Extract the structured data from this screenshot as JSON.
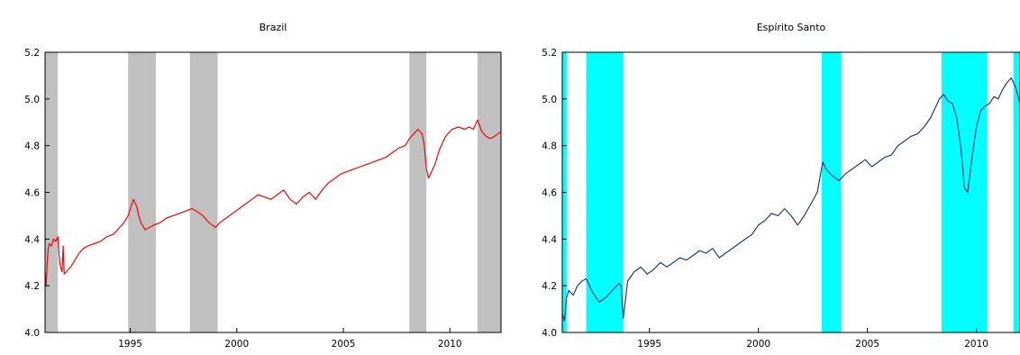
{
  "chart_data": [
    {
      "type": "line",
      "title": "Brazil",
      "xlabel": "",
      "ylabel": "",
      "xlim": [
        1991.0,
        2012.4
      ],
      "ylim": [
        4.0,
        5.2
      ],
      "x_ticks": [
        1995,
        2000,
        2005,
        2010
      ],
      "x_tick_labels": [
        "1995",
        "2000",
        "2005",
        "2010"
      ],
      "y_ticks": [
        4.0,
        4.2,
        4.4,
        4.6,
        4.8,
        5.0,
        5.2
      ],
      "y_tick_labels": [
        "4.0",
        "4.2",
        "4.4",
        "4.6",
        "4.8",
        "5.0",
        "5.2"
      ],
      "grid": false,
      "line_color": "#ff0000",
      "shade_color": "#c0c0c0",
      "shaded_periods": [
        [
          1991.0,
          1991.6
        ],
        [
          1994.9,
          1996.2
        ],
        [
          1997.8,
          1999.1
        ],
        [
          2008.1,
          2008.9
        ],
        [
          2011.3,
          2012.4
        ]
      ],
      "series": [
        {
          "x": [
            1991.0,
            1991.05,
            1991.1,
            1991.15,
            1991.2,
            1991.3,
            1991.4,
            1991.5,
            1991.6,
            1991.65,
            1991.7,
            1991.8,
            1991.85,
            1991.9,
            1992.0,
            1992.2,
            1992.4,
            1992.6,
            1992.8,
            1993.0,
            1993.3,
            1993.6,
            1993.9,
            1994.2,
            1994.5,
            1994.7,
            1994.9,
            1995.0,
            1995.15,
            1995.3,
            1995.4,
            1995.5,
            1995.7,
            1995.9,
            1996.1,
            1996.4,
            1996.7,
            1997.0,
            1997.3,
            1997.6,
            1997.9,
            1998.1,
            1998.4,
            1998.7,
            1999.0,
            1999.2,
            1999.5,
            1999.8,
            2000.1,
            2000.4,
            2000.7,
            2001.0,
            2001.3,
            2001.6,
            2001.9,
            2002.2,
            2002.5,
            2002.8,
            2003.1,
            2003.4,
            2003.7,
            2004.0,
            2004.3,
            2004.6,
            2004.9,
            2005.2,
            2005.5,
            2005.8,
            2006.1,
            2006.4,
            2006.7,
            2007.0,
            2007.3,
            2007.6,
            2007.9,
            2008.1,
            2008.3,
            2008.5,
            2008.7,
            2008.8,
            2008.9,
            2009.0,
            2009.1,
            2009.3,
            2009.5,
            2009.8,
            2010.1,
            2010.4,
            2010.7,
            2010.9,
            2011.1,
            2011.3,
            2011.5,
            2011.7,
            2011.9,
            2012.1,
            2012.4
          ],
          "y": [
            4.26,
            4.2,
            4.3,
            4.36,
            4.38,
            4.37,
            4.4,
            4.39,
            4.41,
            4.34,
            4.29,
            4.26,
            4.37,
            4.25,
            4.26,
            4.28,
            4.31,
            4.34,
            4.36,
            4.37,
            4.38,
            4.39,
            4.41,
            4.42,
            4.45,
            4.47,
            4.5,
            4.53,
            4.57,
            4.54,
            4.5,
            4.47,
            4.44,
            4.45,
            4.46,
            4.47,
            4.49,
            4.5,
            4.51,
            4.52,
            4.53,
            4.52,
            4.5,
            4.47,
            4.45,
            4.47,
            4.49,
            4.51,
            4.53,
            4.55,
            4.57,
            4.59,
            4.58,
            4.57,
            4.59,
            4.61,
            4.57,
            4.55,
            4.58,
            4.6,
            4.57,
            4.61,
            4.64,
            4.66,
            4.68,
            4.69,
            4.7,
            4.71,
            4.72,
            4.73,
            4.74,
            4.75,
            4.77,
            4.79,
            4.8,
            4.83,
            4.85,
            4.87,
            4.85,
            4.8,
            4.7,
            4.66,
            4.68,
            4.72,
            4.78,
            4.84,
            4.87,
            4.88,
            4.87,
            4.88,
            4.87,
            4.91,
            4.86,
            4.84,
            4.83,
            4.84,
            4.86
          ]
        }
      ]
    },
    {
      "type": "line",
      "title": "Espírito Santo",
      "xlabel": "",
      "ylabel": "",
      "xlim": [
        1991.0,
        2012.0
      ],
      "ylim": [
        4.0,
        5.2
      ],
      "x_ticks": [
        1995,
        2000,
        2005,
        2010
      ],
      "x_tick_labels": [
        "1995",
        "2000",
        "2005",
        "2010"
      ],
      "y_ticks": [
        4.0,
        4.2,
        4.4,
        4.6,
        4.8,
        5.0,
        5.2
      ],
      "y_tick_labels": [
        "4.0",
        "4.2",
        "4.4",
        "4.6",
        "4.8",
        "5.0",
        "5.2"
      ],
      "grid": false,
      "line_color": "#1f3c7a",
      "shade_color": "#00ffff",
      "shaded_periods": [
        [
          1991.0,
          1991.2
        ],
        [
          1992.1,
          1993.8
        ],
        [
          2002.9,
          2003.8
        ],
        [
          2008.4,
          2010.5
        ],
        [
          2011.7,
          2012.0
        ]
      ],
      "series": [
        {
          "x": [
            1991.0,
            1991.1,
            1991.2,
            1991.3,
            1991.5,
            1991.7,
            1991.9,
            1992.1,
            1992.4,
            1992.7,
            1993.0,
            1993.3,
            1993.6,
            1993.7,
            1993.8,
            1994.0,
            1994.3,
            1994.6,
            1994.9,
            1995.2,
            1995.5,
            1995.8,
            1996.1,
            1996.4,
            1996.7,
            1997.0,
            1997.3,
            1997.6,
            1997.9,
            1998.2,
            1998.5,
            1998.8,
            1999.1,
            1999.4,
            1999.7,
            2000.0,
            2000.3,
            2000.6,
            2000.9,
            2001.2,
            2001.5,
            2001.8,
            2002.1,
            2002.4,
            2002.7,
            2002.95,
            2003.1,
            2003.4,
            2003.7,
            2004.0,
            2004.3,
            2004.6,
            2004.9,
            2005.2,
            2005.5,
            2005.8,
            2006.1,
            2006.4,
            2006.7,
            2007.0,
            2007.3,
            2007.6,
            2007.9,
            2008.1,
            2008.3,
            2008.5,
            2008.7,
            2008.9,
            2009.1,
            2009.3,
            2009.45,
            2009.6,
            2009.8,
            2010.0,
            2010.2,
            2010.4,
            2010.6,
            2010.8,
            2011.0,
            2011.2,
            2011.4,
            2011.6,
            2011.8,
            2012.0
          ],
          "y": [
            4.08,
            4.05,
            4.15,
            4.18,
            4.16,
            4.2,
            4.22,
            4.23,
            4.17,
            4.13,
            4.15,
            4.18,
            4.21,
            4.2,
            4.06,
            4.22,
            4.26,
            4.28,
            4.25,
            4.27,
            4.3,
            4.28,
            4.3,
            4.32,
            4.31,
            4.33,
            4.35,
            4.34,
            4.36,
            4.32,
            4.34,
            4.36,
            4.38,
            4.4,
            4.42,
            4.46,
            4.48,
            4.51,
            4.5,
            4.53,
            4.5,
            4.46,
            4.5,
            4.55,
            4.6,
            4.73,
            4.7,
            4.67,
            4.65,
            4.68,
            4.7,
            4.72,
            4.74,
            4.71,
            4.73,
            4.75,
            4.76,
            4.8,
            4.82,
            4.84,
            4.85,
            4.88,
            4.92,
            4.96,
            5.0,
            5.02,
            4.99,
            4.98,
            4.92,
            4.78,
            4.62,
            4.6,
            4.75,
            4.88,
            4.95,
            4.97,
            4.98,
            5.01,
            5.0,
            5.04,
            5.07,
            5.09,
            5.05,
            4.98
          ]
        }
      ]
    }
  ]
}
